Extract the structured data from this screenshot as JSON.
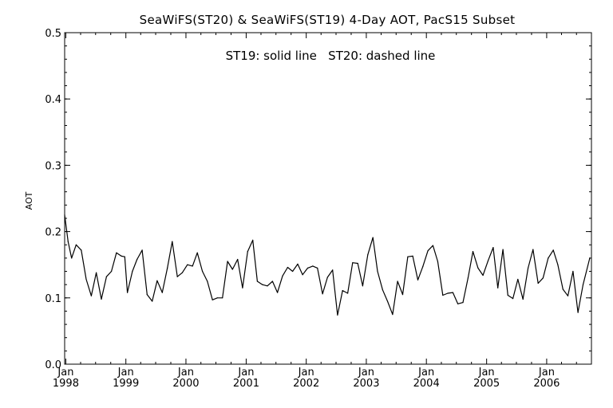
{
  "chart_data": {
    "type": "line",
    "title": "SeaWiFS(ST20) & SeaWiFS(ST19) 4-Day AOT, PacS15 Subset",
    "annotation": "ST19: solid line   ST20: dashed line",
    "ylabel": "AOT",
    "xlabel": "",
    "ylim": [
      0.0,
      0.5
    ],
    "xlim": [
      "1997-12-25",
      "2006-09-30"
    ],
    "y_ticks": [
      "0.0",
      "0.1",
      "0.2",
      "0.3",
      "0.4",
      "0.5"
    ],
    "y_tick_values": [
      0.0,
      0.1,
      0.2,
      0.3,
      0.4,
      0.5
    ],
    "x_ticks": [
      {
        "month": "Jan",
        "year": "1998",
        "date": "1998-01-01"
      },
      {
        "month": "Jan",
        "year": "1999",
        "date": "1999-01-01"
      },
      {
        "month": "Jan",
        "year": "2000",
        "date": "2000-01-01"
      },
      {
        "month": "Jan",
        "year": "2001",
        "date": "2001-01-01"
      },
      {
        "month": "Jan",
        "year": "2002",
        "date": "2002-01-01"
      },
      {
        "month": "Jan",
        "year": "2003",
        "date": "2003-01-01"
      },
      {
        "month": "Jan",
        "year": "2004",
        "date": "2004-01-01"
      },
      {
        "month": "Jan",
        "year": "2005",
        "date": "2005-01-01"
      },
      {
        "month": "Jan",
        "year": "2006",
        "date": "2006-01-01"
      }
    ],
    "grid": false,
    "series": [
      {
        "line_style": "solid",
        "color": "#000000",
        "points": [
          [
            "1997-12-25",
            0.225
          ],
          [
            "1998-01-15",
            0.185
          ],
          [
            "1998-02-05",
            0.16
          ],
          [
            "1998-03-05",
            0.18
          ],
          [
            "1998-04-05",
            0.172
          ],
          [
            "1998-05-05",
            0.128
          ],
          [
            "1998-06-05",
            0.103
          ],
          [
            "1998-07-05",
            0.138
          ],
          [
            "1998-08-05",
            0.098
          ],
          [
            "1998-09-05",
            0.132
          ],
          [
            "1998-10-05",
            0.14
          ],
          [
            "1998-11-05",
            0.168
          ],
          [
            "1998-12-05",
            0.163
          ],
          [
            "1998-12-25",
            0.162
          ],
          [
            "1999-01-10",
            0.108
          ],
          [
            "1999-02-10",
            0.14
          ],
          [
            "1999-03-10",
            0.158
          ],
          [
            "1999-04-10",
            0.172
          ],
          [
            "1999-05-10",
            0.105
          ],
          [
            "1999-06-10",
            0.095
          ],
          [
            "1999-07-10",
            0.126
          ],
          [
            "1999-08-10",
            0.108
          ],
          [
            "1999-09-10",
            0.145
          ],
          [
            "1999-10-10",
            0.185
          ],
          [
            "1999-11-10",
            0.132
          ],
          [
            "1999-12-10",
            0.138
          ],
          [
            "2000-01-10",
            0.15
          ],
          [
            "2000-02-10",
            0.148
          ],
          [
            "2000-03-10",
            0.168
          ],
          [
            "2000-04-10",
            0.14
          ],
          [
            "2000-05-10",
            0.125
          ],
          [
            "2000-06-10",
            0.097
          ],
          [
            "2000-07-10",
            0.1
          ],
          [
            "2000-08-10",
            0.1
          ],
          [
            "2000-09-10",
            0.155
          ],
          [
            "2000-10-10",
            0.143
          ],
          [
            "2000-11-10",
            0.158
          ],
          [
            "2000-12-10",
            0.115
          ],
          [
            "2001-01-10",
            0.17
          ],
          [
            "2001-02-10",
            0.187
          ],
          [
            "2001-03-10",
            0.125
          ],
          [
            "2001-04-10",
            0.12
          ],
          [
            "2001-05-10",
            0.118
          ],
          [
            "2001-06-10",
            0.125
          ],
          [
            "2001-07-10",
            0.108
          ],
          [
            "2001-08-10",
            0.133
          ],
          [
            "2001-09-10",
            0.146
          ],
          [
            "2001-10-10",
            0.14
          ],
          [
            "2001-11-10",
            0.151
          ],
          [
            "2001-12-10",
            0.135
          ],
          [
            "2002-01-10",
            0.145
          ],
          [
            "2002-02-10",
            0.148
          ],
          [
            "2002-03-10",
            0.145
          ],
          [
            "2002-04-10",
            0.106
          ],
          [
            "2002-05-10",
            0.131
          ],
          [
            "2002-06-10",
            0.142
          ],
          [
            "2002-07-10",
            0.074
          ],
          [
            "2002-08-10",
            0.111
          ],
          [
            "2002-09-10",
            0.107
          ],
          [
            "2002-10-10",
            0.153
          ],
          [
            "2002-11-10",
            0.152
          ],
          [
            "2002-12-10",
            0.118
          ],
          [
            "2003-01-10",
            0.165
          ],
          [
            "2003-02-10",
            0.191
          ],
          [
            "2003-03-10",
            0.14
          ],
          [
            "2003-04-10",
            0.112
          ],
          [
            "2003-05-10",
            0.095
          ],
          [
            "2003-06-10",
            0.075
          ],
          [
            "2003-07-10",
            0.125
          ],
          [
            "2003-08-10",
            0.105
          ],
          [
            "2003-09-10",
            0.162
          ],
          [
            "2003-10-10",
            0.163
          ],
          [
            "2003-11-10",
            0.127
          ],
          [
            "2003-12-10",
            0.147
          ],
          [
            "2004-01-10",
            0.171
          ],
          [
            "2004-02-10",
            0.179
          ],
          [
            "2004-03-10",
            0.155
          ],
          [
            "2004-04-10",
            0.104
          ],
          [
            "2004-05-10",
            0.107
          ],
          [
            "2004-06-10",
            0.108
          ],
          [
            "2004-07-10",
            0.091
          ],
          [
            "2004-08-10",
            0.093
          ],
          [
            "2004-09-10",
            0.13
          ],
          [
            "2004-10-10",
            0.17
          ],
          [
            "2004-11-10",
            0.145
          ],
          [
            "2004-12-10",
            0.134
          ],
          [
            "2005-01-10",
            0.156
          ],
          [
            "2005-02-10",
            0.176
          ],
          [
            "2005-03-10",
            0.115
          ],
          [
            "2005-04-10",
            0.173
          ],
          [
            "2005-05-10",
            0.104
          ],
          [
            "2005-06-10",
            0.099
          ],
          [
            "2005-07-10",
            0.128
          ],
          [
            "2005-08-10",
            0.098
          ],
          [
            "2005-09-10",
            0.145
          ],
          [
            "2005-10-10",
            0.173
          ],
          [
            "2005-11-10",
            0.122
          ],
          [
            "2005-12-10",
            0.13
          ],
          [
            "2006-01-10",
            0.16
          ],
          [
            "2006-02-10",
            0.172
          ],
          [
            "2006-03-10",
            0.15
          ],
          [
            "2006-04-10",
            0.113
          ],
          [
            "2006-05-10",
            0.103
          ],
          [
            "2006-06-10",
            0.14
          ],
          [
            "2006-07-10",
            0.078
          ],
          [
            "2006-08-10",
            0.12
          ],
          [
            "2006-09-20",
            0.16
          ]
        ]
      }
    ]
  }
}
